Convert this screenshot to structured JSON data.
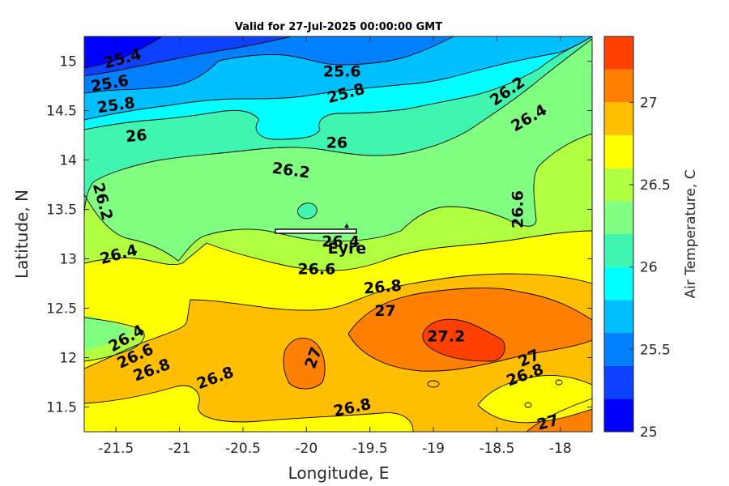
{
  "chart_data": {
    "type": "contourf",
    "title": "Valid for 27-Jul-2025 00:00:00 GMT",
    "xlabel": "Longitude, E",
    "ylabel": "Latitude, N",
    "xlim": [
      -21.75,
      -17.75
    ],
    "ylim": [
      11.25,
      15.25
    ],
    "xticks": [
      -21.5,
      -21,
      -20.5,
      -20,
      -19.5,
      -19,
      -18.5,
      -18
    ],
    "xtick_labels": [
      "-21.5",
      "-21",
      "-20.5",
      "-20",
      "-19.5",
      "-19",
      "-18.5",
      "-18"
    ],
    "yticks": [
      11.5,
      12,
      12.5,
      13,
      13.5,
      14,
      14.5,
      15
    ],
    "ytick_labels": [
      "11.5",
      "12",
      "12.5",
      "13",
      "13.5",
      "14",
      "14.5",
      "15"
    ],
    "colorbar": {
      "label": "Air Temperature, C",
      "range": [
        25,
        27.4
      ],
      "ticks": [
        25,
        25.5,
        26,
        26.5,
        27
      ],
      "tick_labels": [
        "25",
        "25.5",
        "26",
        "26.5",
        "27"
      ],
      "levels": [
        25,
        25.2,
        25.4,
        25.6,
        25.8,
        26,
        26.2,
        26.4,
        26.6,
        26.8,
        27,
        27.2,
        27.4
      ],
      "colors": [
        "#0000ff",
        "#0d40ff",
        "#0080ff",
        "#00bfff",
        "#00ffff",
        "#40f5b0",
        "#80ff80",
        "#b0ff40",
        "#ffff00",
        "#ffbf00",
        "#ff8000",
        "#ff4000",
        "#ff0000"
      ]
    },
    "contour_labels": [
      {
        "text": "25.4",
        "lon": -21.45,
        "lat": 15.03,
        "angle": -15
      },
      {
        "text": "25.6",
        "lon": -21.55,
        "lat": 14.78,
        "angle": -10
      },
      {
        "text": "25.8",
        "lon": -21.5,
        "lat": 14.56,
        "angle": -8
      },
      {
        "text": "26",
        "lon": -21.34,
        "lat": 14.25,
        "angle": -5
      },
      {
        "text": "25.6",
        "lon": -19.72,
        "lat": 14.9,
        "angle": 0
      },
      {
        "text": "25.8",
        "lon": -19.69,
        "lat": 14.68,
        "angle": -15
      },
      {
        "text": "26",
        "lon": -19.76,
        "lat": 14.18,
        "angle": 0
      },
      {
        "text": "26.2",
        "lon": -20.12,
        "lat": 13.9,
        "angle": 8
      },
      {
        "text": "26.2",
        "lon": -18.42,
        "lat": 14.7,
        "angle": -35
      },
      {
        "text": "26.4",
        "lon": -18.25,
        "lat": 14.43,
        "angle": -30
      },
      {
        "text": "26.2",
        "lon": -21.6,
        "lat": 13.58,
        "angle": 75
      },
      {
        "text": "26.6",
        "lon": -18.34,
        "lat": 13.5,
        "angle": -90
      },
      {
        "text": "26.4",
        "lon": -21.48,
        "lat": 13.05,
        "angle": -15
      },
      {
        "text": "26.4",
        "lon": -19.73,
        "lat": 13.18,
        "angle": 0
      },
      {
        "text": "26.6",
        "lon": -19.92,
        "lat": 12.9,
        "angle": 0
      },
      {
        "text": "26.8",
        "lon": -19.4,
        "lat": 12.72,
        "angle": -5
      },
      {
        "text": "27",
        "lon": -19.38,
        "lat": 12.48,
        "angle": 0
      },
      {
        "text": "27.2",
        "lon": -18.9,
        "lat": 12.22,
        "angle": 0
      },
      {
        "text": "26.4",
        "lon": -21.42,
        "lat": 12.2,
        "angle": -30
      },
      {
        "text": "26.6",
        "lon": -21.35,
        "lat": 12.02,
        "angle": -25
      },
      {
        "text": "26.8",
        "lon": -21.22,
        "lat": 11.88,
        "angle": -20
      },
      {
        "text": "26.8",
        "lon": -20.72,
        "lat": 11.8,
        "angle": -20
      },
      {
        "text": "27",
        "lon": -19.95,
        "lat": 12.0,
        "angle": -70
      },
      {
        "text": "27",
        "lon": -18.25,
        "lat": 12.0,
        "angle": -25
      },
      {
        "text": "26.8",
        "lon": -18.28,
        "lat": 11.83,
        "angle": -20
      },
      {
        "text": "26.8",
        "lon": -19.64,
        "lat": 11.5,
        "angle": -12
      },
      {
        "text": "27",
        "lon": -18.1,
        "lat": 11.35,
        "angle": -15
      }
    ],
    "station": {
      "name": "Eyre",
      "lon": -19.68,
      "lat": 13.15
    }
  }
}
